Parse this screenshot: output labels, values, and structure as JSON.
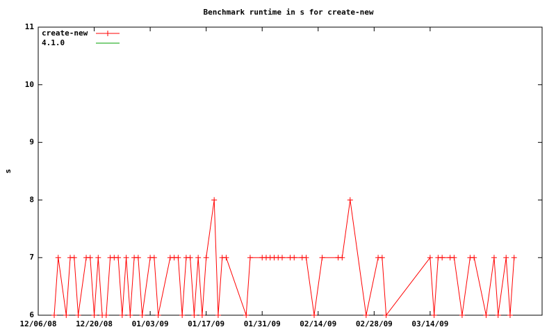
{
  "chart_data": {
    "type": "line",
    "title": "Benchmark runtime in s for create-new",
    "y_label": "s",
    "xlim": [
      "12/06/08",
      "04/11/09"
    ],
    "xticks": [
      "12/06/08",
      "12/20/08",
      "01/03/09",
      "01/17/09",
      "01/31/09",
      "02/14/09",
      "02/28/09",
      "03/14/09"
    ],
    "ylim": [
      6,
      11
    ],
    "yticks": [
      6,
      7,
      8,
      9,
      10,
      11
    ],
    "legend": "top-left",
    "series": [
      {
        "name": "create-new",
        "color": "#ff0000",
        "markers": true,
        "x": [
          "12/10/08",
          "12/11/08",
          "12/13/08",
          "12/14/08",
          "12/15/08",
          "12/16/08",
          "12/18/08",
          "12/19/08",
          "12/20/08",
          "12/21/08",
          "12/22/08",
          "12/23/08",
          "12/24/08",
          "12/25/08",
          "12/26/08",
          "12/27/08",
          "12/28/08",
          "12/29/08",
          "12/30/08",
          "12/31/08",
          "01/01/09",
          "01/03/09",
          "01/04/09",
          "01/05/09",
          "01/08/09",
          "01/09/09",
          "01/10/09",
          "01/11/09",
          "01/12/09",
          "01/13/09",
          "01/14/09",
          "01/15/09",
          "01/16/09",
          "01/17/09",
          "01/19/09",
          "01/20/09",
          "01/21/09",
          "01/22/09",
          "01/27/09",
          "01/28/09",
          "01/31/09",
          "02/01/09",
          "02/02/09",
          "02/03/09",
          "02/04/09",
          "02/05/09",
          "02/07/09",
          "02/08/09",
          "02/10/09",
          "02/11/09",
          "02/13/09",
          "02/15/09",
          "02/19/09",
          "02/20/09",
          "02/22/09",
          "02/26/09",
          "03/01/09",
          "03/02/09",
          "03/03/09",
          "03/14/09",
          "03/15/09",
          "03/16/09",
          "03/17/09",
          "03/19/09",
          "03/20/09",
          "03/22/09",
          "03/24/09",
          "03/25/09",
          "03/28/09",
          "03/30/09",
          "03/31/09",
          "04/02/09",
          "04/03/09",
          "04/04/09"
        ],
        "values": [
          6,
          7,
          6,
          7,
          7,
          6,
          7,
          7,
          6,
          7,
          6,
          6,
          7,
          7,
          7,
          6,
          7,
          6,
          7,
          7,
          6,
          7,
          7,
          6,
          7,
          7,
          7,
          6,
          7,
          7,
          6,
          7,
          6,
          7,
          8,
          6,
          7,
          7,
          6,
          7,
          7,
          7,
          7,
          7,
          7,
          7,
          7,
          7,
          7,
          7,
          6,
          7,
          7,
          7,
          8,
          6,
          7,
          7,
          6,
          7,
          6,
          7,
          7,
          7,
          7,
          6,
          7,
          7,
          6,
          7,
          6,
          7,
          6,
          7
        ]
      },
      {
        "name": "4.1.0",
        "color": "#00a000",
        "markers": false,
        "x": [],
        "values": []
      }
    ]
  }
}
